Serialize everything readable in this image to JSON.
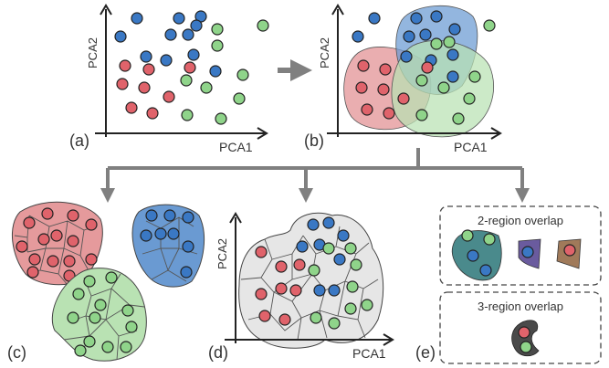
{
  "labels": {
    "a": "(a)",
    "b": "(b)",
    "c": "(c)",
    "d": "(d)",
    "e": "(e)",
    "pca1": "PCA1",
    "pca2": "PCA2",
    "two_region": "2-region overlap",
    "three_region": "3-region overlap"
  },
  "colors": {
    "red": "#e0636b",
    "blue": "#3a78c4",
    "green": "#8fd48a",
    "arrow": "#808080",
    "region_red": "#e59a9c",
    "region_blue": "#7ea5d6",
    "region_green": "#b9e2b3",
    "region_gray": "#e6e6e6"
  }
}
